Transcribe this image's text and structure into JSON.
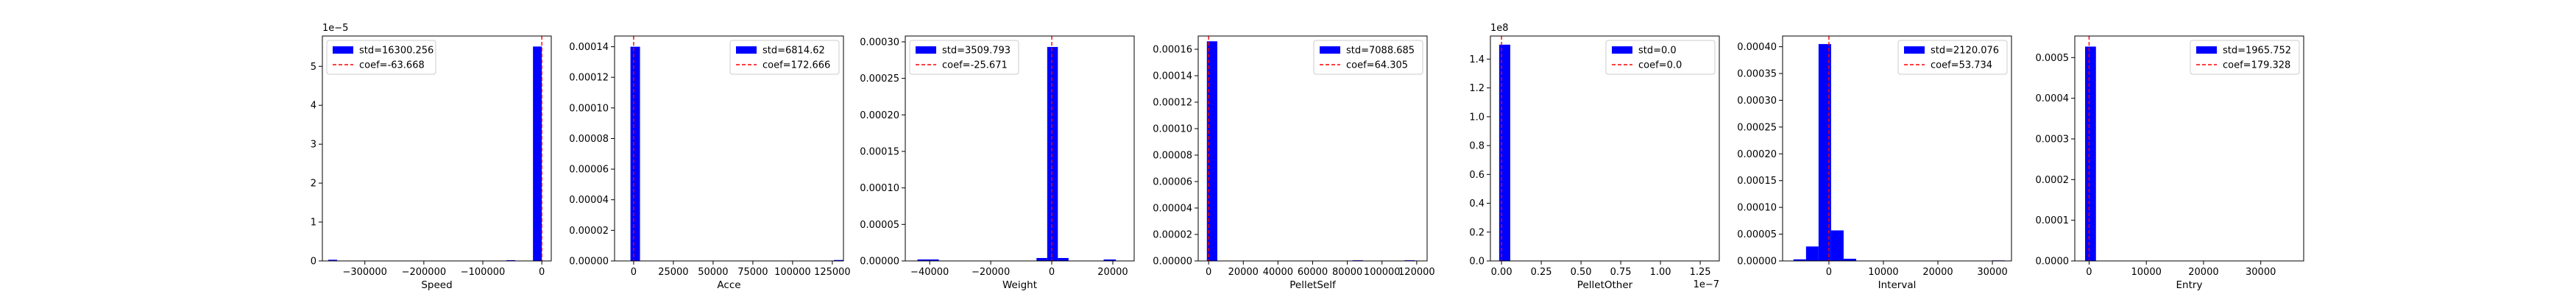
{
  "chart_data": [
    {
      "type": "bar",
      "xlabel": "Speed",
      "xlim": [
        -372000,
        16000
      ],
      "ylim": [
        0,
        5.78e-05
      ],
      "xticks": [
        -300000,
        -200000,
        -100000,
        0
      ],
      "xtick_labels": [
        "−300000",
        "−200000",
        "−100000",
        "0"
      ],
      "yticks": [
        0,
        1e-05,
        2e-05,
        3e-05,
        4e-05,
        5e-05
      ],
      "ytick_labels": [
        "0",
        "1",
        "2",
        "3",
        "4",
        "5"
      ],
      "offset_label": "1e−5",
      "bins": [
        [
          -15000,
          0,
          5.51e-05
        ],
        [
          -362000,
          -347000,
          3e-07
        ],
        [
          -60000,
          -45000,
          2e-07
        ]
      ],
      "ref_line_x": 0,
      "legend": {
        "placement": "top-left",
        "items": [
          {
            "label": "std=16300.256",
            "color": "#0000ff",
            "kind": "patch"
          },
          {
            "label": "coef=-63.668",
            "color": "#ff0000",
            "kind": "dashed"
          }
        ]
      },
      "grid": false
    },
    {
      "type": "bar",
      "xlabel": "Acce",
      "xlim": [
        -12000,
        132000
      ],
      "ylim": [
        0,
        0.000147
      ],
      "xticks": [
        0,
        25000,
        50000,
        75000,
        100000,
        125000
      ],
      "xtick_labels": [
        "0",
        "25000",
        "50000",
        "75000",
        "100000",
        "125000"
      ],
      "yticks": [
        0,
        2e-05,
        4e-05,
        6e-05,
        8e-05,
        0.0001,
        0.00012,
        0.00014
      ],
      "ytick_labels": [
        "0.00000",
        "0.00002",
        "0.00004",
        "0.00006",
        "0.00008",
        "0.00010",
        "0.00012",
        "0.00014"
      ],
      "offset_label": "",
      "bins": [
        [
          -2000,
          4000,
          0.00014
        ],
        [
          126000,
          132000,
          6e-07
        ]
      ],
      "ref_line_x": 0,
      "legend": {
        "placement": "top-right",
        "items": [
          {
            "label": "std=6814.62",
            "color": "#0000ff",
            "kind": "patch"
          },
          {
            "label": "coef=172.666",
            "color": "#ff0000",
            "kind": "dashed"
          }
        ]
      },
      "grid": false
    },
    {
      "type": "bar",
      "xlabel": "Weight",
      "xlim": [
        -48000,
        27000
      ],
      "ylim": [
        0,
        0.000308
      ],
      "xticks": [
        -40000,
        -20000,
        0,
        20000
      ],
      "xtick_labels": [
        "−40000",
        "−20000",
        "0",
        "20000"
      ],
      "yticks": [
        0,
        5e-05,
        0.0001,
        0.00015,
        0.0002,
        0.00025,
        0.0003
      ],
      "ytick_labels": [
        "0.00000",
        "0.00005",
        "0.00010",
        "0.00015",
        "0.00020",
        "0.00025",
        "0.00030"
      ],
      "offset_label": "",
      "bins": [
        [
          -1500,
          2000,
          0.000293
        ],
        [
          -5000,
          -1500,
          4e-06
        ],
        [
          2000,
          5500,
          4e-06
        ],
        [
          -44000,
          -37000,
          2e-06
        ],
        [
          17000,
          21000,
          2e-06
        ]
      ],
      "ref_line_x": 0,
      "legend": {
        "placement": "top-left",
        "items": [
          {
            "label": "std=3509.793",
            "color": "#0000ff",
            "kind": "patch"
          },
          {
            "label": "coef=-25.671",
            "color": "#ff0000",
            "kind": "dashed"
          }
        ]
      },
      "grid": false
    },
    {
      "type": "bar",
      "xlabel": "PelletSelf",
      "xlim": [
        -6000,
        126000
      ],
      "ylim": [
        0,
        0.00017
      ],
      "xticks": [
        0,
        20000,
        40000,
        60000,
        80000,
        100000,
        120000
      ],
      "xtick_labels": [
        "0",
        "20000",
        "40000",
        "60000",
        "80000",
        "100000",
        "120000"
      ],
      "yticks": [
        0,
        2e-05,
        4e-05,
        6e-05,
        8e-05,
        0.0001,
        0.00012,
        0.00014,
        0.00016
      ],
      "ytick_labels": [
        "0.00000",
        "0.00002",
        "0.00004",
        "0.00006",
        "0.00008",
        "0.00010",
        "0.00012",
        "0.00014",
        "0.00016"
      ],
      "offset_label": "",
      "bins": [
        [
          -1000,
          5000,
          0.000166
        ],
        [
          83000,
          89000,
          5e-07
        ],
        [
          113000,
          119000,
          5e-07
        ]
      ],
      "ref_line_x": 0,
      "legend": {
        "placement": "top-right",
        "items": [
          {
            "label": "std=7088.685",
            "color": "#0000ff",
            "kind": "patch"
          },
          {
            "label": "coef=64.305",
            "color": "#ff0000",
            "kind": "dashed"
          }
        ]
      },
      "grid": false
    },
    {
      "type": "bar",
      "xlabel": "PelletOther",
      "xlim": [
        -7e-09,
        1.37e-07
      ],
      "ylim": [
        0,
        156000000
      ],
      "xticks": [
        0,
        2.5e-08,
        5e-08,
        7.5e-08,
        1e-07,
        1.25e-07
      ],
      "xtick_labels": [
        "0.00",
        "0.25",
        "0.50",
        "0.75",
        "1.00",
        "1.25"
      ],
      "yticks": [
        0,
        20000000,
        40000000,
        60000000,
        80000000,
        100000000,
        120000000,
        140000000
      ],
      "ytick_labels": [
        "0.0",
        "0.2",
        "0.4",
        "0.6",
        "0.8",
        "1.0",
        "1.2",
        "1.4"
      ],
      "offset_label": "1e8",
      "x_offset_label": "1e−7",
      "bins": [
        [
          -1.5e-09,
          5.5e-09,
          150000000
        ]
      ],
      "ref_line_x": 0,
      "legend": {
        "placement": "top-right",
        "items": [
          {
            "label": "std=0.0",
            "color": "#0000ff",
            "kind": "patch"
          },
          {
            "label": "coef=0.0",
            "color": "#ff0000",
            "kind": "dashed"
          }
        ]
      },
      "grid": false
    },
    {
      "type": "bar",
      "xlabel": "Interval",
      "xlim": [
        -8500,
        33500
      ],
      "ylim": [
        0,
        0.00042
      ],
      "xticks": [
        0,
        10000,
        20000,
        30000
      ],
      "xtick_labels": [
        "0",
        "10000",
        "20000",
        "30000"
      ],
      "yticks": [
        0,
        5e-05,
        0.0001,
        0.00015,
        0.0002,
        0.00025,
        0.0003,
        0.00035,
        0.0004
      ],
      "ytick_labels": [
        "0.00000",
        "0.00005",
        "0.00010",
        "0.00015",
        "0.00020",
        "0.00025",
        "0.00030",
        "0.00035",
        "0.00040"
      ],
      "offset_label": "",
      "bins": [
        [
          -6500,
          -4200,
          3e-06
        ],
        [
          -4200,
          -1900,
          2.7e-05
        ],
        [
          -1900,
          400,
          0.000405
        ],
        [
          400,
          2700,
          5.7e-05
        ],
        [
          2700,
          5000,
          4e-06
        ],
        [
          30000,
          32300,
          1e-06
        ]
      ],
      "ref_line_x": 0,
      "legend": {
        "placement": "top-right",
        "items": [
          {
            "label": "std=2120.076",
            "color": "#0000ff",
            "kind": "patch"
          },
          {
            "label": "coef=53.734",
            "color": "#ff0000",
            "kind": "dashed"
          }
        ]
      },
      "grid": false
    },
    {
      "type": "bar",
      "xlabel": "Entry",
      "xlim": [
        -2500,
        37500
      ],
      "ylim": [
        0,
        0.000553
      ],
      "xticks": [
        0,
        10000,
        20000,
        30000
      ],
      "xtick_labels": [
        "0",
        "10000",
        "20000",
        "30000"
      ],
      "yticks": [
        0,
        0.0001,
        0.0002,
        0.0003,
        0.0004,
        0.0005
      ],
      "ytick_labels": [
        "0.0000",
        "0.0001",
        "0.0002",
        "0.0003",
        "0.0004",
        "0.0005"
      ],
      "offset_label": "",
      "bins": [
        [
          -700,
          1200,
          0.000527
        ],
        [
          20000,
          21900,
          6e-07
        ],
        [
          35500,
          37400,
          6e-07
        ]
      ],
      "ref_line_x": 0,
      "legend": {
        "placement": "top-right",
        "items": [
          {
            "label": "std=1965.752",
            "color": "#0000ff",
            "kind": "patch"
          },
          {
            "label": "coef=179.328",
            "color": "#ff0000",
            "kind": "dashed"
          }
        ]
      },
      "grid": false
    }
  ]
}
